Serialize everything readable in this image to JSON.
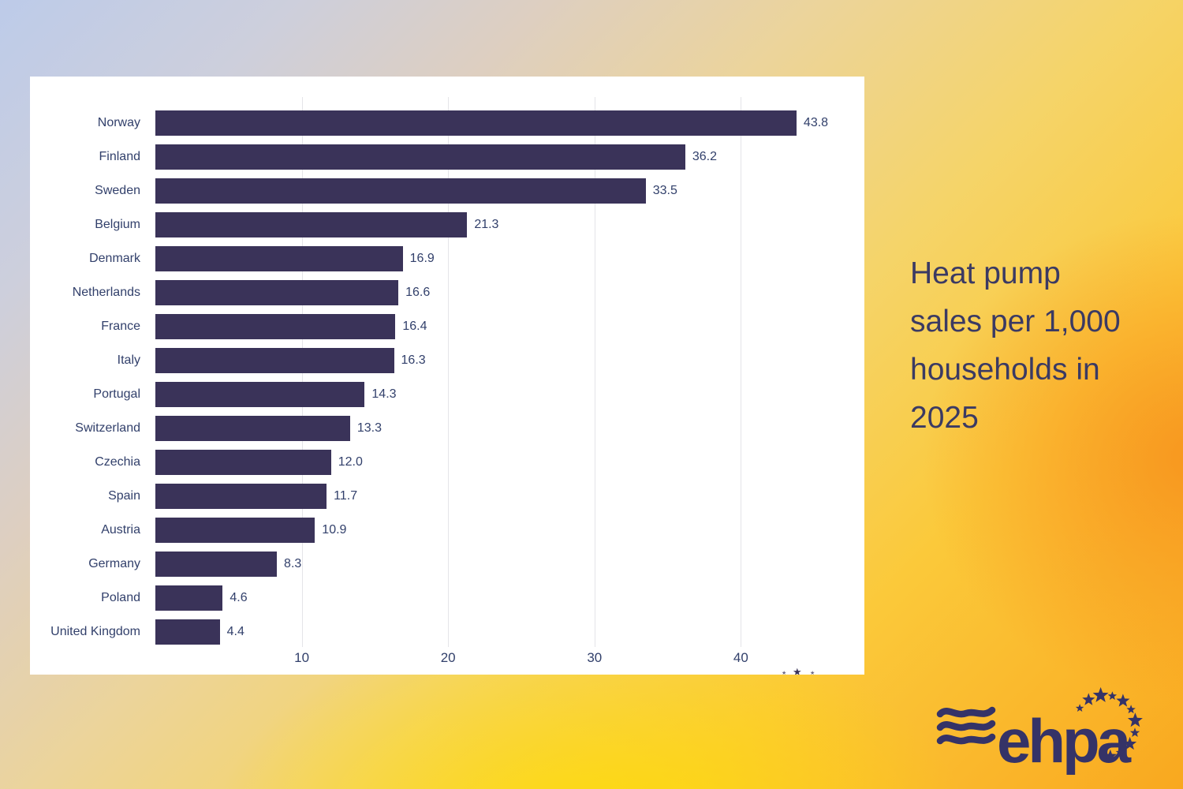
{
  "side_title": {
    "text": "Heat pump sales per 1,000 households in 2025",
    "lines": [
      "Heat pump",
      "sales per 1,000",
      "households in",
      "2025"
    ]
  },
  "chart_data": {
    "type": "bar",
    "orientation": "horizontal",
    "title": "Heat pump sales per 1,000 households in 2025",
    "categories": [
      "Norway",
      "Finland",
      "Sweden",
      "Belgium",
      "Denmark",
      "Netherlands",
      "France",
      "Italy",
      "Portugal",
      "Switzerland",
      "Czechia",
      "Spain",
      "Austria",
      "Germany",
      "Poland",
      "United Kingdom"
    ],
    "values": [
      43.8,
      36.2,
      33.5,
      21.3,
      16.9,
      16.6,
      16.4,
      16.3,
      14.3,
      13.3,
      12.0,
      11.7,
      10.9,
      8.3,
      4.6,
      4.4
    ],
    "value_labels": [
      "43.8",
      "36.2",
      "33.5",
      "21.3",
      "16.9",
      "16.6",
      "16.4",
      "16.3",
      "14.3",
      "13.3",
      "12.0",
      "11.7",
      "10.9",
      "8.3",
      "4.6",
      "4.4"
    ],
    "x_ticks": [
      "10",
      "20",
      "30",
      "40"
    ],
    "xlim": [
      0,
      48
    ],
    "xlabel": "",
    "ylabel": "",
    "grid": "vertical-gridlines",
    "legend": "none",
    "bar_color": "#3a3359",
    "text_color": "#32406b",
    "gridline_color": "#e4e4e8",
    "panel_background": "#ffffff"
  },
  "logo": {
    "brand": "ehpa",
    "color": "#353367",
    "waves_icon": "three-waves",
    "stars_icon": "eu-star-circle"
  },
  "background": {
    "top_left": "#bdcbe9",
    "middle_beige": "#ecd49a",
    "bottom_center_yellow": "#fede00",
    "right_orange": "#f8951e"
  }
}
